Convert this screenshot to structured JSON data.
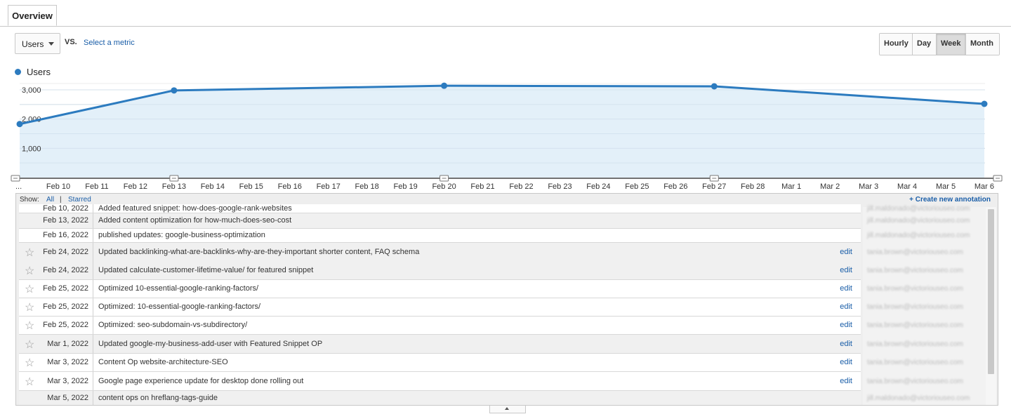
{
  "tab": {
    "label": "Overview"
  },
  "metric": {
    "selected": "Users",
    "vs": "VS.",
    "select_metric": "Select a metric"
  },
  "periods": [
    {
      "label": "Hourly",
      "active": false
    },
    {
      "label": "Day",
      "active": false
    },
    {
      "label": "Week",
      "active": true
    },
    {
      "label": "Month",
      "active": false
    }
  ],
  "legend": {
    "label": "Users",
    "color": "#2c7bbf"
  },
  "chart_data": {
    "type": "area",
    "series": [
      {
        "name": "Users",
        "color": "#2c7bbf",
        "x": [
          "Feb 9",
          "Feb 13",
          "Feb 20",
          "Feb 27",
          "Mar 6"
        ],
        "values": [
          1830,
          2980,
          3140,
          3120,
          2520
        ]
      }
    ],
    "y_ticks": [
      "3,000",
      "2,000",
      "1,000"
    ],
    "ylim": [
      0,
      3000
    ],
    "x_start_label": "...",
    "x_tick_labels": [
      "Feb 10",
      "Feb 11",
      "Feb 12",
      "Feb 13",
      "Feb 14",
      "Feb 15",
      "Feb 16",
      "Feb 17",
      "Feb 18",
      "Feb 19",
      "Feb 20",
      "Feb 21",
      "Feb 22",
      "Feb 23",
      "Feb 24",
      "Feb 25",
      "Feb 26",
      "Feb 27",
      "Feb 28",
      "Mar 1",
      "Mar 2",
      "Mar 3",
      "Mar 4",
      "Mar 5",
      "Mar 6"
    ],
    "annotation_markers_at": [
      "Feb 9",
      "Feb 13",
      "Feb 20",
      "Feb 27",
      "Mar 6"
    ],
    "grid": true
  },
  "annotations": {
    "show_label": "Show:",
    "filter_all": "All",
    "filter_separator": "|",
    "filter_starred": "Starred",
    "create_label": "+ Create new annotation",
    "star_glyph": "☆",
    "edit_label": "edit",
    "rows": [
      {
        "date": "Feb 10, 2022",
        "text": "Added featured snippet: how-does-google-rank-websites",
        "has_star": false,
        "has_edit": false,
        "email": "jill.maldonado@victoriouseo.com"
      },
      {
        "date": "Feb 13, 2022",
        "text": "Added content optimization for how-much-does-seo-cost",
        "has_star": false,
        "has_edit": false,
        "email": "jill.maldonado@victoriouseo.com"
      },
      {
        "date": "Feb 16, 2022",
        "text": "published updates: google-business-optimization",
        "has_star": false,
        "has_edit": false,
        "email": "jill.maldonado@victoriouseo.com"
      },
      {
        "date": "Feb 24, 2022",
        "text": "Updated backlinking-what-are-backlinks-why-are-they-important shorter content, FAQ schema",
        "has_star": true,
        "has_edit": true,
        "email": "tania.brown@victoriouseo.com"
      },
      {
        "date": "Feb 24, 2022",
        "text": "Updated calculate-customer-lifetime-value/ for featured snippet",
        "has_star": true,
        "has_edit": true,
        "email": "tania.brown@victoriouseo.com"
      },
      {
        "date": "Feb 25, 2022",
        "text": "Optimized 10-essential-google-ranking-factors/",
        "has_star": true,
        "has_edit": true,
        "email": "tania.brown@victoriouseo.com"
      },
      {
        "date": "Feb 25, 2022",
        "text": "Optimized: 10-essential-google-ranking-factors/",
        "has_star": true,
        "has_edit": true,
        "email": "tania.brown@victoriouseo.com"
      },
      {
        "date": "Feb 25, 2022",
        "text": "Optimized: seo-subdomain-vs-subdirectory/",
        "has_star": true,
        "has_edit": true,
        "email": "tania.brown@victoriouseo.com"
      },
      {
        "date": "Mar 1, 2022",
        "text": "Updated google-my-business-add-user with Featured Snippet OP",
        "has_star": true,
        "has_edit": true,
        "email": "tania.brown@victoriouseo.com"
      },
      {
        "date": "Mar 3, 2022",
        "text": "Content Op website-architecture-SEO",
        "has_star": true,
        "has_edit": true,
        "email": "tania.brown@victoriouseo.com"
      },
      {
        "date": "Mar 3, 2022",
        "text": "Google page experience update for desktop done rolling out",
        "has_star": true,
        "has_edit": true,
        "email": "tania.brown@victoriouseo.com"
      },
      {
        "date": "Mar 5, 2022",
        "text": "content ops on hreflang-tags-guide",
        "has_star": false,
        "has_edit": false,
        "email": "jill.maldonado@victoriouseo.com"
      }
    ]
  }
}
